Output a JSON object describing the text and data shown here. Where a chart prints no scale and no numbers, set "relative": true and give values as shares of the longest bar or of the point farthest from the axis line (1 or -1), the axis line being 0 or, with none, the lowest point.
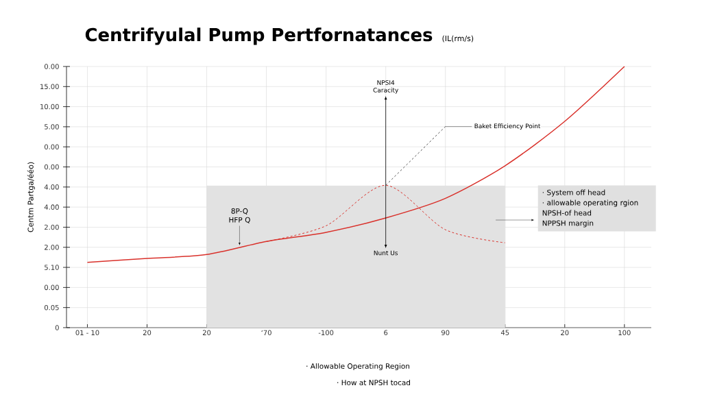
{
  "chart_data": {
    "type": "line",
    "title": "Centrifyulal Pump Pertfornatances",
    "subtitle": "(IL(rm/s)",
    "ylabel": "Centm Partga/ééo)",
    "relative": true,
    "categories": [
      "01 -  10",
      "20",
      "20",
      "‘70",
      "-100",
      "6",
      "90",
      "45",
      "20",
      "100"
    ],
    "grid": true,
    "series": [
      {
        "type": "area",
        "color": "#e2e2e2",
        "values": [
          null,
          null,
          0.543,
          0.543,
          0.543,
          0.543,
          0.543,
          0.543,
          null,
          null
        ]
      },
      {
        "color": "#d9302a",
        "line_style": "solid",
        "values": [
          0.25,
          0.265,
          0.28,
          0.33,
          0.365,
          0.42,
          0.495,
          0.62,
          0.79,
          1.0
        ]
      },
      {
        "color": "#d9302a",
        "line_style": "dashed",
        "values": [
          null,
          null,
          null,
          0.33,
          0.39,
          0.545,
          0.375,
          0.325,
          null,
          null
        ]
      },
      {
        "color": "#555555",
        "line_style": "dashed",
        "values": [
          null,
          null,
          null,
          null,
          null,
          0.545,
          0.77,
          null,
          null,
          null
        ]
      }
    ],
    "annotations": [
      "Baket Efficiency Point",
      "NPSI4 Caracity",
      "Nunt Us",
      "8P-Q HFP Q",
      "· System off head",
      "· allowable operating rgion",
      "NPSH-of head",
      "NPPSH margin",
      "· Allowable Operating Region",
      "· How at NPSH tocad",
      "0.00",
      "15.00",
      "10.00",
      "5.00",
      "0.00",
      "0.00",
      "4.00",
      "4.00",
      "2.00",
      "2.00",
      "5.10",
      "0.00",
      "0.05",
      "0"
    ]
  }
}
